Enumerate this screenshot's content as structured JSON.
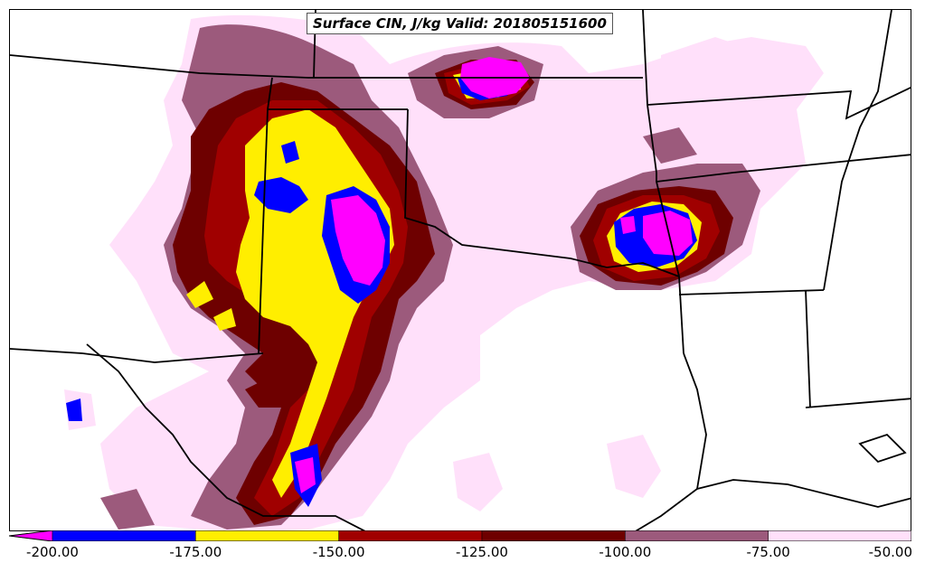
{
  "map": {
    "title": "Surface CIN, J/kg Valid: 201805151600",
    "colors": {
      "below_-200": "#ff00ff",
      "-200_to_-175": "#0000ff",
      "-175_to_-150": "#ffee00",
      "-150_to_-125": "#a00000",
      "-125_to_-100": "#6e0000",
      "-100_to_-75": "#9c5a7c",
      "-75_to_-50": "#ffe0fa"
    }
  },
  "colorbar": {
    "segments": [
      {
        "range": "< -200",
        "color": "#ff00ff"
      },
      {
        "range": "-200 to -175",
        "color": "#0000ff"
      },
      {
        "range": "-175 to -150",
        "color": "#ffee00"
      },
      {
        "range": "-150 to -125",
        "color": "#a00000"
      },
      {
        "range": "-125 to -100",
        "color": "#6e0000"
      },
      {
        "range": "-100 to -75",
        "color": "#9c5a7c"
      },
      {
        "range": "-75 to -50",
        "color": "#ffe0fa"
      }
    ],
    "tick_labels": [
      "-200.00",
      "-175.00",
      "-150.00",
      "-125.00",
      "-100.00",
      "-75.00",
      "-50.00"
    ]
  }
}
